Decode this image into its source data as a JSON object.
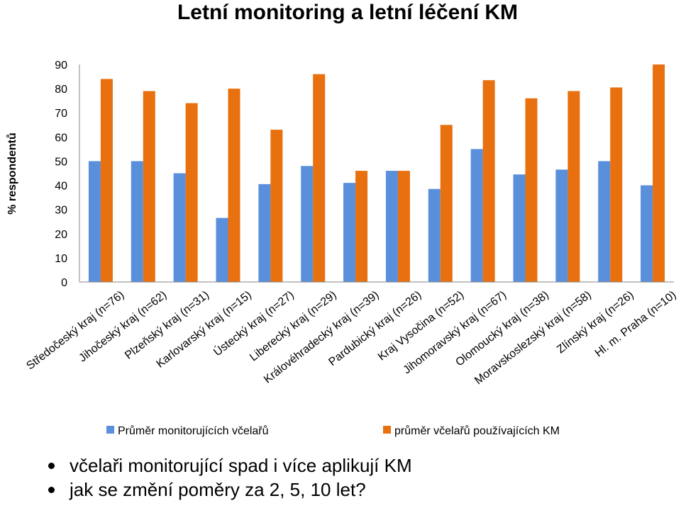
{
  "title": "Letní monitoring a letní léčení KM",
  "colors": {
    "series1": "#5a8fdc",
    "series2": "#e8700f",
    "axis": "#868686",
    "grid": "#e5e5e5"
  },
  "chart_data": {
    "type": "bar",
    "title": "Letní monitoring a letní léčení KM",
    "xlabel": "",
    "ylabel": "% respondentů",
    "ylim": [
      0,
      90
    ],
    "yticks": [
      0,
      10,
      20,
      30,
      40,
      50,
      60,
      70,
      80,
      90
    ],
    "grid": false,
    "legend": "bottom",
    "categories": [
      "Středočeský kraj (n=76)",
      "Jihočeský kraj (n=62)",
      "Plzeňský kraj (n=31)",
      "Karlovarský kraj (n=15)",
      "Ústecký kraj (n=27)",
      "Liberecký kraj (n=29)",
      "Královéhradecký kraj (n=39)",
      "Pardubický kraj (n=26)",
      "Kraj Vysočina (n=52)",
      "Jihomoravský kraj (n=67)",
      "Olomoucký kraj (n=38)",
      "Moravskoslezský kraj (n=58)",
      "Zlínský kraj (n=26)",
      "Hl. m. Praha (n=10)"
    ],
    "series": [
      {
        "name": "Průměr monitorujících včelařů",
        "values": [
          50,
          50,
          45,
          26.5,
          40.5,
          48,
          41,
          46,
          38.5,
          55,
          44.5,
          46.5,
          50,
          40
        ]
      },
      {
        "name": "průměr včelařů používajících KM",
        "values": [
          84,
          79,
          74,
          80,
          63,
          86,
          46,
          46,
          65,
          83.5,
          76,
          79,
          80.5,
          90
        ]
      }
    ]
  },
  "bullets": [
    "včelaři monitorující spad i více aplikují KM",
    "jak se změní poměry za 2, 5, 10 let?"
  ]
}
